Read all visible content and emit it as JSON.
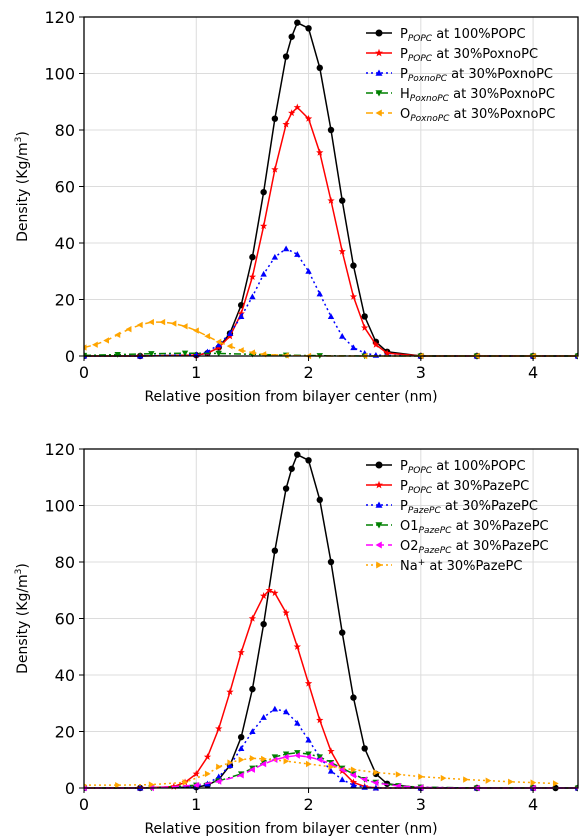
{
  "chart_data": [
    {
      "type": "line",
      "title": "",
      "xlabel": "Relative position from bilayer center (nm)",
      "ylabel": "Density (Kg/m³)",
      "ylabel_main": "Density (Kg/m",
      "ylabel_sup": "3",
      "ylabel_end": ")",
      "xlim": [
        0,
        4.4
      ],
      "ylim": [
        0,
        120
      ],
      "xticks": [
        0,
        1,
        2,
        3,
        4
      ],
      "yticks": [
        0,
        20,
        40,
        60,
        80,
        100,
        120
      ],
      "xtick_labels": [
        "0",
        "1",
        "2",
        "3",
        "4"
      ],
      "ytick_labels": [
        "0",
        "20",
        "40",
        "60",
        "80",
        "100",
        "120"
      ],
      "grid": true,
      "legend_position": "top-right",
      "series": [
        {
          "name": "P_POPC at 100%POPC",
          "legend_main": "P",
          "legend_sub": "POPC",
          "legend_sup": "",
          "legend_rest": " at 100%POPC",
          "color": "#000000",
          "marker": "circle",
          "dash": "solid",
          "x": [
            0,
            0.5,
            1.0,
            1.1,
            1.2,
            1.3,
            1.4,
            1.5,
            1.6,
            1.7,
            1.8,
            1.85,
            1.9,
            2.0,
            2.1,
            2.2,
            2.3,
            2.4,
            2.5,
            2.6,
            2.7,
            3.0,
            3.5,
            4.0,
            4.4
          ],
          "y": [
            0,
            0,
            0.3,
            1,
            3,
            8,
            18,
            35,
            58,
            84,
            106,
            113,
            118,
            116,
            102,
            80,
            55,
            32,
            14,
            5,
            1.5,
            0,
            0,
            0,
            0
          ]
        },
        {
          "name": "P_POPC at 30%PoxnoPC",
          "legend_main": "P",
          "legend_sub": "POPC",
          "legend_sup": "",
          "legend_rest": " at 30%PoxnoPC",
          "color": "#ff0000",
          "marker": "star",
          "dash": "solid",
          "x": [
            0,
            0.5,
            1.0,
            1.1,
            1.2,
            1.3,
            1.4,
            1.5,
            1.6,
            1.7,
            1.8,
            1.85,
            1.9,
            2.0,
            2.1,
            2.2,
            2.3,
            2.4,
            2.5,
            2.6,
            2.7,
            3.0,
            3.5,
            4.0,
            4.4
          ],
          "y": [
            0,
            0,
            0.3,
            1,
            3,
            7,
            15,
            28,
            46,
            66,
            82,
            86,
            88,
            84,
            72,
            55,
            37,
            21,
            10,
            4,
            1,
            0,
            0,
            0,
            0
          ]
        },
        {
          "name": "P_PoxnoPC at 30%PoxnoPC",
          "legend_main": "P",
          "legend_sub": "PoxnoPC",
          "legend_sup": "",
          "legend_rest": " at 30%PoxnoPC",
          "color": "#0000ff",
          "marker": "triangle-up",
          "dash": "dotted",
          "x": [
            0,
            0.5,
            1.0,
            1.1,
            1.2,
            1.3,
            1.4,
            1.5,
            1.6,
            1.7,
            1.8,
            1.9,
            2.0,
            2.1,
            2.2,
            2.3,
            2.4,
            2.5,
            2.6,
            3.0,
            3.5,
            4.0,
            4.4
          ],
          "y": [
            0,
            0,
            0.5,
            1.5,
            4,
            8,
            14,
            21,
            29,
            35,
            38,
            36,
            30,
            22,
            14,
            7,
            3,
            1,
            0.3,
            0,
            0,
            0,
            0
          ]
        },
        {
          "name": "H_PoxnoPC at 30%PoxnoPC",
          "legend_main": "H",
          "legend_sub": "PoxnoPC",
          "legend_sup": "",
          "legend_rest": " at 30%PoxnoPC",
          "color": "#008000",
          "marker": "triangle-down",
          "dash": "dashdot",
          "x": [
            0,
            0.3,
            0.6,
            0.9,
            1.2,
            1.5,
            1.8,
            2.1,
            2.5,
            3.0,
            3.5,
            4.0,
            4.4
          ],
          "y": [
            0.2,
            0.5,
            0.8,
            1,
            0.9,
            0.6,
            0.3,
            0.1,
            0,
            0,
            0,
            0,
            0
          ]
        },
        {
          "name": "O_PoxnoPC at 30%PoxnoPC",
          "legend_main": "O",
          "legend_sub": "PoxnoPC",
          "legend_sup": "",
          "legend_rest": " at 30%PoxnoPC",
          "color": "#ffa500",
          "marker": "triangle-left",
          "dash": "dashed",
          "x": [
            0,
            0.1,
            0.2,
            0.3,
            0.4,
            0.5,
            0.6,
            0.7,
            0.8,
            0.9,
            1.0,
            1.1,
            1.2,
            1.3,
            1.4,
            1.5,
            1.6,
            1.8,
            2.0,
            2.5,
            3.0,
            3.5,
            4.0,
            4.4
          ],
          "y": [
            3,
            4,
            5.5,
            7.5,
            9.5,
            11,
            12,
            12,
            11.5,
            10.5,
            9,
            7,
            5,
            3.5,
            2,
            1.2,
            0.6,
            0.2,
            0,
            0,
            0,
            0,
            0,
            0
          ]
        }
      ]
    },
    {
      "type": "line",
      "title": "",
      "xlabel": "Relative position from bilayer center (nm)",
      "ylabel": "Density (Kg/m³)",
      "ylabel_main": "Density (Kg/m",
      "ylabel_sup": "3",
      "ylabel_end": ")",
      "xlim": [
        0,
        4.4
      ],
      "ylim": [
        0,
        120
      ],
      "xticks": [
        0,
        1,
        2,
        3,
        4
      ],
      "yticks": [
        0,
        20,
        40,
        60,
        80,
        100,
        120
      ],
      "xtick_labels": [
        "0",
        "1",
        "2",
        "3",
        "4"
      ],
      "ytick_labels": [
        "0",
        "20",
        "40",
        "60",
        "80",
        "100",
        "120"
      ],
      "grid": true,
      "legend_position": "top-right",
      "series": [
        {
          "name": "P_POPC at 100%POPC",
          "legend_main": "P",
          "legend_sub": "POPC",
          "legend_sup": "",
          "legend_rest": " at 100%POPC",
          "color": "#000000",
          "marker": "circle",
          "dash": "solid",
          "x": [
            0,
            0.5,
            1.0,
            1.1,
            1.2,
            1.3,
            1.4,
            1.5,
            1.6,
            1.7,
            1.8,
            1.85,
            1.9,
            2.0,
            2.1,
            2.2,
            2.3,
            2.4,
            2.5,
            2.6,
            2.7,
            3.0,
            3.5,
            4.0,
            4.2,
            4.4
          ],
          "y": [
            0,
            0,
            0.3,
            1,
            3,
            8,
            18,
            35,
            58,
            84,
            106,
            113,
            118,
            116,
            102,
            80,
            55,
            32,
            14,
            5,
            1.5,
            0,
            0,
            0,
            0,
            0
          ]
        },
        {
          "name": "P_POPC at 30%PazePC",
          "legend_main": "P",
          "legend_sub": "POPC",
          "legend_sup": "",
          "legend_rest": " at 30%PazePC",
          "color": "#ff0000",
          "marker": "star",
          "dash": "solid",
          "x": [
            0,
            0.5,
            0.8,
            0.9,
            1.0,
            1.1,
            1.2,
            1.3,
            1.4,
            1.5,
            1.6,
            1.65,
            1.7,
            1.8,
            1.9,
            2.0,
            2.1,
            2.2,
            2.3,
            2.4,
            2.5,
            2.6,
            3.0,
            3.5,
            4.0,
            4.4
          ],
          "y": [
            0,
            0,
            0.5,
            2,
            5,
            11,
            21,
            34,
            48,
            60,
            68,
            70,
            69,
            62,
            50,
            37,
            24,
            13,
            6,
            2,
            0.5,
            0,
            0,
            0,
            0,
            0
          ]
        },
        {
          "name": "P_PazePC at 30%PazePC",
          "legend_main": "P",
          "legend_sub": "PazePC",
          "legend_sup": "",
          "legend_rest": " at 30%PazePC",
          "color": "#0000ff",
          "marker": "triangle-up",
          "dash": "dotted",
          "x": [
            0,
            0.5,
            1.0,
            1.1,
            1.2,
            1.3,
            1.4,
            1.5,
            1.6,
            1.7,
            1.8,
            1.9,
            2.0,
            2.1,
            2.2,
            2.3,
            2.4,
            2.5,
            2.6,
            3.0,
            3.5,
            4.0,
            4.4
          ],
          "y": [
            0,
            0,
            0.5,
            1.5,
            4,
            8,
            14,
            20,
            25,
            28,
            27,
            23,
            17,
            11,
            6,
            3,
            1,
            0.3,
            0,
            0,
            0,
            0,
            0
          ]
        },
        {
          "name": "O1_PazePC at 30%PazePC",
          "legend_main": "O1",
          "legend_sub": "PazePC",
          "legend_sup": "",
          "legend_rest": " at 30%PazePC",
          "color": "#008000",
          "marker": "triangle-down",
          "dash": "dashdot",
          "x": [
            0,
            0.6,
            1.0,
            1.2,
            1.4,
            1.5,
            1.6,
            1.7,
            1.8,
            1.9,
            2.0,
            2.1,
            2.2,
            2.3,
            2.4,
            2.5,
            2.6,
            2.8,
            3.0,
            3.5,
            4.0,
            4.4
          ],
          "y": [
            0,
            0,
            1,
            2.5,
            5,
            7,
            9,
            11,
            12,
            12.5,
            12,
            11,
            9,
            7,
            5,
            3,
            2,
            0.8,
            0.3,
            0,
            0,
            0
          ]
        },
        {
          "name": "O2_PazePC at 30%PazePC",
          "legend_main": "O2",
          "legend_sub": "PazePC",
          "legend_sup": "",
          "legend_rest": " at 30%PazePC",
          "color": "#ff00ff",
          "marker": "triangle-left",
          "dash": "dashed",
          "x": [
            0,
            0.6,
            1.0,
            1.2,
            1.4,
            1.5,
            1.6,
            1.7,
            1.8,
            1.9,
            2.0,
            2.1,
            2.2,
            2.3,
            2.4,
            2.5,
            2.6,
            2.8,
            3.0,
            3.5,
            4.0,
            4.4
          ],
          "y": [
            0,
            0,
            1,
            2.3,
            4.5,
            6.5,
            8.5,
            10,
            11,
            11.5,
            11,
            10,
            8.5,
            6.5,
            4.5,
            3,
            1.8,
            0.7,
            0.2,
            0,
            0,
            0
          ]
        },
        {
          "name": "Na+ at 30%PazePC",
          "legend_main": "Na",
          "legend_sub": "",
          "legend_sup": "+",
          "legend_rest": " at 30%PazePC",
          "color": "#ffa500",
          "marker": "triangle-right",
          "dash": "dotted",
          "x": [
            0,
            0.3,
            0.6,
            0.9,
            1.1,
            1.2,
            1.3,
            1.4,
            1.5,
            1.6,
            1.8,
            2.0,
            2.2,
            2.4,
            2.6,
            2.8,
            3.0,
            3.2,
            3.4,
            3.6,
            3.8,
            4.0,
            4.2
          ],
          "y": [
            1,
            1,
            1.2,
            2,
            5,
            7.5,
            9,
            10,
            10.5,
            10.3,
            9.5,
            8.5,
            7.5,
            6.5,
            5.5,
            4.8,
            4,
            3.5,
            3,
            2.6,
            2.2,
            1.9,
            1.6
          ]
        }
      ]
    }
  ]
}
